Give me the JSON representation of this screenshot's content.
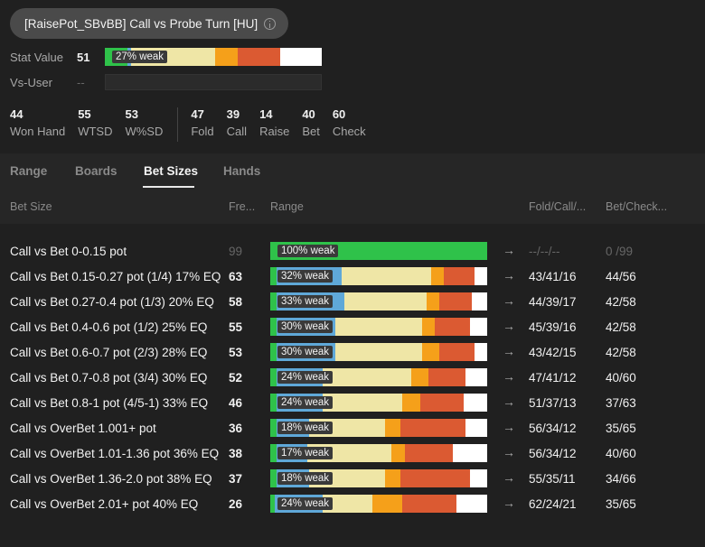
{
  "header": {
    "title": "[RaisePot_SBvBB] Call vs Probe Turn [HU]"
  },
  "colors": {
    "green": "#2fc24a",
    "blue": "#5fa8d8",
    "yellow": "#efe6a6",
    "orange": "#f5a01a",
    "red": "#db5a32",
    "white": "#ffffff"
  },
  "stat": {
    "label": "Stat Value",
    "value": "51",
    "bar": {
      "label": "27% weak",
      "segments": [
        {
          "color": "green",
          "pct": 6
        },
        {
          "color": "blue",
          "pct": 1
        },
        {
          "color": "yellow",
          "pct": 22
        },
        {
          "color": "yellow",
          "pct": 0
        },
        {
          "color": "yellow",
          "pct": 0
        },
        {
          "color": "yellow",
          "pct": 6
        },
        {
          "color": "yellow",
          "pct": 0
        },
        {
          "color": "yellow",
          "pct": 0
        },
        {
          "color": "yellow",
          "pct": 0
        },
        {
          "color": "yellow",
          "pct": 0
        }
      ]
    }
  },
  "vs_user": {
    "label": "Vs-User",
    "value": "--"
  },
  "metrics_left": [
    {
      "value": "44",
      "label": "Won Hand"
    },
    {
      "value": "55",
      "label": "WTSD"
    },
    {
      "value": "53",
      "label": "W%SD"
    }
  ],
  "metrics_right": [
    {
      "value": "47",
      "label": "Fold"
    },
    {
      "value": "39",
      "label": "Call"
    },
    {
      "value": "14",
      "label": "Raise"
    },
    {
      "value": "40",
      "label": "Bet"
    },
    {
      "value": "60",
      "label": "Check"
    }
  ],
  "tabs": [
    "Range",
    "Boards",
    "Bet Sizes",
    "Hands"
  ],
  "active_tab": "Bet Sizes",
  "columns": {
    "bet_size": "Bet Size",
    "freq": "Fre...",
    "range": "Range",
    "fcr": "Fold/Call/...",
    "bc": "Bet/Check..."
  },
  "arrow_glyph": "→",
  "rows": [
    {
      "name": "Call vs Bet 0-0.15 pot",
      "freq": "99",
      "dim": true,
      "label": "100% weak",
      "fcr": "--/--/--",
      "bc": "0 /99",
      "segs": [
        100,
        0,
        0,
        0,
        0,
        0
      ]
    },
    {
      "name": "Call vs Bet 0.15-0.27 pot (1/4) 17% EQ",
      "freq": "63",
      "label": "32% weak",
      "fcr": "43/41/16",
      "bc": "44/56",
      "segs": [
        3,
        30,
        41,
        6,
        14,
        6
      ]
    },
    {
      "name": "Call vs Bet 0.27-0.4 pot (1/3) 20% EQ",
      "freq": "58",
      "label": "33% weak",
      "fcr": "44/39/17",
      "bc": "42/58",
      "segs": [
        3,
        31,
        38,
        6,
        15,
        7
      ]
    },
    {
      "name": "Call vs Bet 0.4-0.6 pot (1/2) 25% EQ",
      "freq": "55",
      "label": "30% weak",
      "fcr": "45/39/16",
      "bc": "42/58",
      "segs": [
        3,
        27,
        40,
        6,
        16,
        8
      ]
    },
    {
      "name": "Call vs Bet 0.6-0.7 pot (2/3) 28% EQ",
      "freq": "53",
      "label": "30% weak",
      "fcr": "43/42/15",
      "bc": "42/58",
      "segs": [
        3,
        27,
        40,
        8,
        16,
        6
      ]
    },
    {
      "name": "Call vs Bet 0.7-0.8 pot (3/4) 30% EQ",
      "freq": "52",
      "label": "24% weak",
      "fcr": "47/41/12",
      "bc": "40/60",
      "segs": [
        3,
        21,
        41,
        8,
        17,
        10
      ]
    },
    {
      "name": "Call vs Bet 0.8-1 pot (4/5-1) 33% EQ",
      "freq": "46",
      "label": "24% weak",
      "fcr": "51/37/13",
      "bc": "37/63",
      "segs": [
        3,
        21,
        37,
        8,
        20,
        11
      ]
    },
    {
      "name": "Call vs OverBet 1.001+ pot",
      "freq": "36",
      "label": "18% weak",
      "fcr": "56/34/12",
      "bc": "35/65",
      "segs": [
        3,
        15,
        35,
        7,
        30,
        10
      ]
    },
    {
      "name": "Call vs OverBet 1.01-1.36 pot 36% EQ",
      "freq": "38",
      "label": "17% weak",
      "fcr": "56/34/12",
      "bc": "40/60",
      "segs": [
        3,
        14,
        39,
        6,
        22,
        16
      ]
    },
    {
      "name": "Call vs OverBet 1.36-2.0 pot 38% EQ",
      "freq": "37",
      "label": "18% weak",
      "fcr": "55/35/11",
      "bc": "34/66",
      "segs": [
        3,
        15,
        35,
        7,
        32,
        8
      ]
    },
    {
      "name": "Call vs OverBet 2.01+ pot 40% EQ",
      "freq": "26",
      "label": "24% weak",
      "fcr": "62/24/21",
      "bc": "35/65",
      "segs": [
        2,
        22,
        23,
        14,
        25,
        14
      ]
    }
  ]
}
